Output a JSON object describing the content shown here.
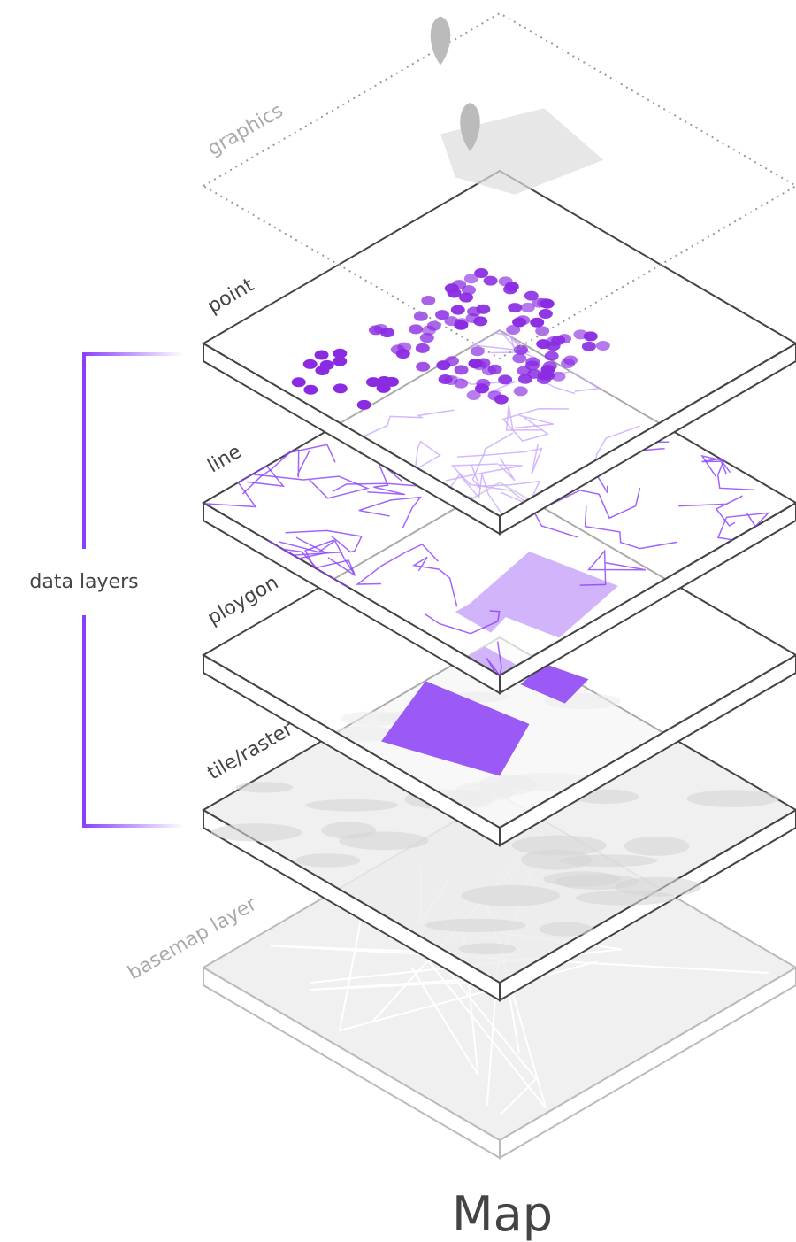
{
  "layers": [
    {
      "label": "graphics"
    },
    {
      "label": "point"
    },
    {
      "label": "line"
    },
    {
      "label": "ploygon"
    },
    {
      "label": "tile/raster"
    },
    {
      "label": "basemap layer"
    }
  ],
  "group": {
    "label": "data layers"
  },
  "title": "Map"
}
